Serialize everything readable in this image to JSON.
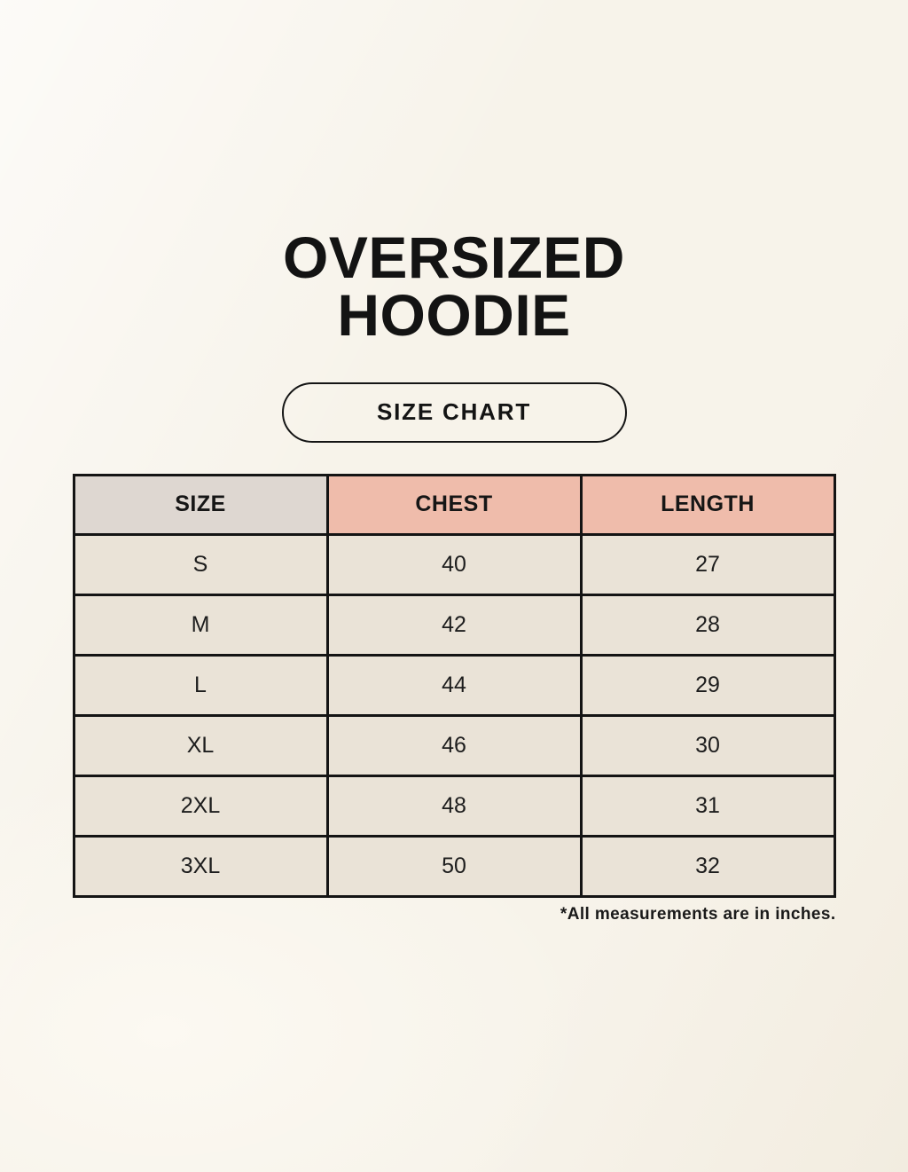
{
  "header": {
    "title_line1": "OVERSIZED",
    "title_line2": "HOODIE",
    "badge_label": "SIZE CHART"
  },
  "chart_data": {
    "type": "table",
    "title": "OVERSIZED HOODIE",
    "subtitle": "SIZE CHART",
    "columns": [
      "SIZE",
      "CHEST",
      "LENGTH"
    ],
    "units": "inches",
    "rows": [
      {
        "size": "S",
        "chest": "40",
        "length": "27"
      },
      {
        "size": "M",
        "chest": "42",
        "length": "28"
      },
      {
        "size": "L",
        "chest": "44",
        "length": "29"
      },
      {
        "size": "XL",
        "chest": "46",
        "length": "30"
      },
      {
        "size": "2XL",
        "chest": "48",
        "length": "31"
      },
      {
        "size": "3XL",
        "chest": "50",
        "length": "32"
      }
    ]
  },
  "footnote": "*All measurements are in inches.",
  "colors": {
    "background": "#f7f3ea",
    "accent_pink": "#efbcab",
    "size_column_gray": "#dcd5d0",
    "header_gray": "#ded7d1",
    "cell_cream": "#eae3d7",
    "border": "#141414",
    "text": "#141414"
  }
}
